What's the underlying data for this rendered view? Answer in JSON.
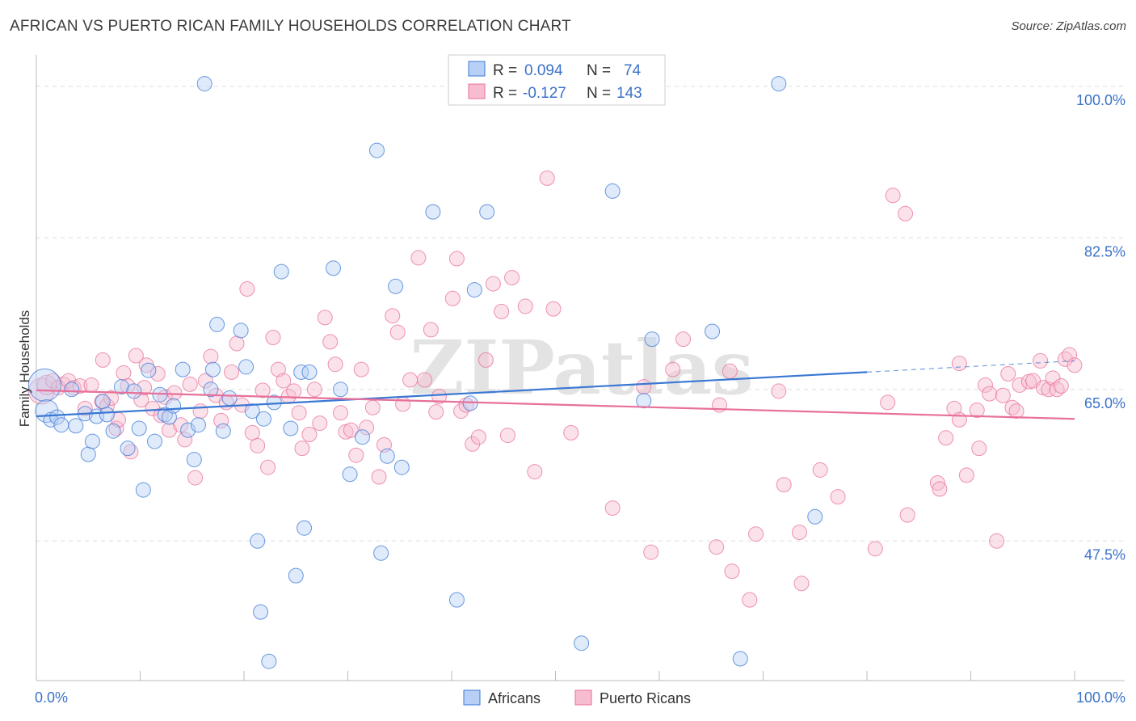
{
  "title": "AFRICAN VS PUERTO RICAN FAMILY HOUSEHOLDS CORRELATION CHART",
  "source": "Source: ZipAtlas.com",
  "watermark": "ZIPatlas",
  "colors": {
    "blue": "#3a78d4",
    "blue_fill": "#b8d0f5",
    "pink": "#e8709a",
    "pink_fill": "#f7bcd0",
    "axis_label": "#3b72c8",
    "grid": "#dddddd"
  },
  "legend_box": {
    "rows": [
      {
        "series": "Africans",
        "r_label": "R =",
        "r_value": "0.094",
        "n_label": "N =",
        "n_value": "74"
      },
      {
        "series": "Puerto Ricans",
        "r_label": "R =",
        "r_value": "-0.127",
        "n_label": "N =",
        "n_value": "143"
      }
    ]
  },
  "chart_data": {
    "type": "scatter",
    "title": "AFRICAN VS PUERTO RICAN FAMILY HOUSEHOLDS CORRELATION CHART",
    "xlabel": "",
    "ylabel": "Family Households",
    "xlim": [
      0,
      100
    ],
    "ylim": [
      32.5,
      102.5
    ],
    "x_tick_labels": [
      {
        "value": 0,
        "label": "0.0%"
      },
      {
        "value": 100,
        "label": "100.0%"
      }
    ],
    "y_tick_labels": [
      {
        "value": 47.5,
        "label": "47.5%"
      },
      {
        "value": 65.0,
        "label": "65.0%"
      },
      {
        "value": 82.5,
        "label": "82.5%"
      },
      {
        "value": 100.0,
        "label": "100.0%"
      }
    ],
    "legend": [
      "Africans",
      "Puerto Ricans"
    ],
    "series": [
      {
        "name": "Africans",
        "trend": {
          "x": [
            0,
            80
          ],
          "y": [
            61.9,
            67.0
          ],
          "dashed_extension_x": [
            80,
            100
          ],
          "dashed_extension_y": [
            67.0,
            68.3
          ]
        },
        "points": [
          [
            0.8,
            65.5,
            20
          ],
          [
            1.0,
            62.5,
            14
          ],
          [
            1.4,
            61.5,
            9
          ],
          [
            2.0,
            61.8,
            9
          ],
          [
            2.4,
            60.9,
            9
          ],
          [
            3.4,
            65.0,
            9
          ],
          [
            3.8,
            60.8,
            9
          ],
          [
            4.7,
            62.2,
            9
          ],
          [
            5.0,
            57.5,
            9
          ],
          [
            5.4,
            59.0,
            9
          ],
          [
            5.8,
            61.9,
            9
          ],
          [
            6.4,
            63.6,
            9
          ],
          [
            6.8,
            62.1,
            9
          ],
          [
            7.4,
            60.2,
            9
          ],
          [
            8.2,
            65.3,
            9
          ],
          [
            8.8,
            58.2,
            9
          ],
          [
            9.4,
            64.8,
            9
          ],
          [
            9.9,
            60.5,
            9
          ],
          [
            10.3,
            53.4,
            9
          ],
          [
            10.8,
            67.2,
            9
          ],
          [
            11.4,
            59.0,
            9
          ],
          [
            11.9,
            64.4,
            9
          ],
          [
            12.4,
            62.1,
            9
          ],
          [
            12.8,
            61.8,
            9
          ],
          [
            13.2,
            63.1,
            9
          ],
          [
            14.1,
            67.3,
            9
          ],
          [
            14.6,
            60.3,
            9
          ],
          [
            15.2,
            56.9,
            9
          ],
          [
            15.6,
            60.9,
            9
          ],
          [
            16.2,
            100.3,
            9
          ],
          [
            16.8,
            65.0,
            9
          ],
          [
            17.0,
            67.3,
            9
          ],
          [
            17.4,
            72.5,
            9
          ],
          [
            18.0,
            60.2,
            9
          ],
          [
            18.6,
            64.0,
            9
          ],
          [
            19.7,
            71.8,
            9
          ],
          [
            20.2,
            67.6,
            9
          ],
          [
            20.8,
            62.5,
            9
          ],
          [
            21.3,
            47.5,
            9
          ],
          [
            21.6,
            39.3,
            9
          ],
          [
            21.9,
            61.6,
            9
          ],
          [
            22.4,
            33.6,
            9
          ],
          [
            22.9,
            63.5,
            9
          ],
          [
            23.6,
            78.6,
            9
          ],
          [
            24.5,
            60.5,
            9
          ],
          [
            25.0,
            43.5,
            9
          ],
          [
            25.5,
            67.0,
            9
          ],
          [
            25.8,
            49.0,
            9
          ],
          [
            26.3,
            67.0,
            9
          ],
          [
            28.6,
            79.0,
            9
          ],
          [
            29.3,
            65.0,
            9
          ],
          [
            30.2,
            55.2,
            9
          ],
          [
            31.4,
            59.5,
            9
          ],
          [
            32.8,
            92.6,
            9
          ],
          [
            33.2,
            46.1,
            9
          ],
          [
            33.8,
            57.3,
            9
          ],
          [
            34.6,
            76.9,
            9
          ],
          [
            35.2,
            56.0,
            9
          ],
          [
            38.2,
            85.5,
            9
          ],
          [
            40.5,
            40.7,
            9
          ],
          [
            41.8,
            63.4,
            9
          ],
          [
            42.2,
            76.5,
            9
          ],
          [
            43.4,
            85.5,
            9
          ],
          [
            52.5,
            35.7,
            9
          ],
          [
            55.5,
            87.9,
            9
          ],
          [
            58.5,
            63.7,
            9
          ],
          [
            59.3,
            70.8,
            9
          ],
          [
            65.1,
            71.7,
            9
          ],
          [
            67.8,
            33.9,
            9
          ],
          [
            71.5,
            100.3,
            9
          ],
          [
            75.0,
            50.3,
            9
          ]
        ]
      },
      {
        "name": "Puerto Ricans",
        "trend": {
          "x": [
            0,
            100
          ],
          "y": [
            64.9,
            61.6
          ]
        },
        "points": [
          [
            0.5,
            64.8,
            16
          ],
          [
            1.0,
            65.5,
            12
          ],
          [
            1.6,
            66.0,
            9
          ],
          [
            2.1,
            65.2,
            9
          ],
          [
            2.6,
            65.6,
            9
          ],
          [
            3.1,
            66.0,
            9
          ],
          [
            3.6,
            65.2,
            9
          ],
          [
            4.2,
            65.4,
            9
          ],
          [
            4.7,
            62.8,
            9
          ],
          [
            5.3,
            65.5,
            9
          ],
          [
            6.3,
            63.6,
            9
          ],
          [
            6.4,
            68.4,
            9
          ],
          [
            6.8,
            63.1,
            9
          ],
          [
            7.2,
            64.0,
            9
          ],
          [
            7.7,
            60.5,
            9
          ],
          [
            7.9,
            61.5,
            9
          ],
          [
            8.4,
            66.9,
            9
          ],
          [
            8.8,
            65.4,
            9
          ],
          [
            9.1,
            57.8,
            9
          ],
          [
            9.6,
            68.9,
            9
          ],
          [
            10.1,
            63.8,
            9
          ],
          [
            10.4,
            65.2,
            9
          ],
          [
            10.6,
            67.8,
            9
          ],
          [
            11.2,
            62.8,
            9
          ],
          [
            11.7,
            66.8,
            9
          ],
          [
            12.0,
            62.0,
            9
          ],
          [
            12.4,
            64.1,
            9
          ],
          [
            12.8,
            60.3,
            9
          ],
          [
            13.3,
            64.6,
            9
          ],
          [
            13.9,
            60.9,
            9
          ],
          [
            14.3,
            59.2,
            9
          ],
          [
            14.8,
            65.6,
            9
          ],
          [
            15.3,
            54.8,
            9
          ],
          [
            15.8,
            62.5,
            9
          ],
          [
            16.3,
            66.0,
            9
          ],
          [
            16.8,
            68.8,
            9
          ],
          [
            17.3,
            64.3,
            9
          ],
          [
            17.8,
            61.4,
            9
          ],
          [
            18.3,
            63.5,
            9
          ],
          [
            18.8,
            67.0,
            9
          ],
          [
            19.3,
            70.3,
            9
          ],
          [
            19.8,
            63.2,
            9
          ],
          [
            20.3,
            76.6,
            9
          ],
          [
            20.8,
            60.0,
            9
          ],
          [
            21.3,
            58.5,
            9
          ],
          [
            21.8,
            64.9,
            9
          ],
          [
            22.3,
            56.0,
            9
          ],
          [
            22.8,
            71.0,
            9
          ],
          [
            23.3,
            67.3,
            9
          ],
          [
            23.8,
            66.0,
            9
          ],
          [
            24.3,
            64.2,
            9
          ],
          [
            24.8,
            64.8,
            9
          ],
          [
            25.3,
            62.3,
            9
          ],
          [
            25.6,
            58.2,
            9
          ],
          [
            26.3,
            59.8,
            9
          ],
          [
            26.8,
            65.0,
            9
          ],
          [
            27.3,
            61.1,
            9
          ],
          [
            27.8,
            73.3,
            9
          ],
          [
            28.3,
            70.5,
            9
          ],
          [
            28.8,
            67.9,
            9
          ],
          [
            29.3,
            62.3,
            9
          ],
          [
            29.8,
            60.1,
            9
          ],
          [
            30.3,
            60.3,
            9
          ],
          [
            30.8,
            57.4,
            9
          ],
          [
            31.3,
            67.3,
            9
          ],
          [
            31.8,
            60.6,
            9
          ],
          [
            32.4,
            62.9,
            9
          ],
          [
            33.0,
            54.9,
            9
          ],
          [
            33.5,
            58.6,
            9
          ],
          [
            34.3,
            73.5,
            9
          ],
          [
            34.8,
            71.6,
            9
          ],
          [
            35.3,
            63.3,
            9
          ],
          [
            36.0,
            66.1,
            9
          ],
          [
            36.8,
            80.2,
            9
          ],
          [
            37.4,
            66.1,
            9
          ],
          [
            38.0,
            71.9,
            9
          ],
          [
            38.5,
            62.4,
            9
          ],
          [
            38.8,
            64.2,
            9
          ],
          [
            40.1,
            75.5,
            9
          ],
          [
            40.5,
            80.1,
            9
          ],
          [
            40.9,
            62.5,
            9
          ],
          [
            41.4,
            63.2,
            9
          ],
          [
            42.0,
            58.7,
            9
          ],
          [
            42.6,
            59.5,
            9
          ],
          [
            43.3,
            68.4,
            9
          ],
          [
            44.0,
            77.2,
            9
          ],
          [
            44.8,
            74.0,
            9
          ],
          [
            45.4,
            59.7,
            9
          ],
          [
            45.8,
            77.9,
            9
          ],
          [
            47.1,
            74.6,
            9
          ],
          [
            48.0,
            55.5,
            9
          ],
          [
            49.2,
            89.4,
            9
          ],
          [
            49.8,
            74.3,
            9
          ],
          [
            51.5,
            60.0,
            9
          ],
          [
            55.5,
            51.3,
            9
          ],
          [
            58.5,
            65.3,
            9
          ],
          [
            59.2,
            46.2,
            9
          ],
          [
            61.3,
            67.3,
            9
          ],
          [
            62.3,
            70.8,
            9
          ],
          [
            65.5,
            46.8,
            9
          ],
          [
            65.8,
            63.2,
            9
          ],
          [
            66.8,
            67.1,
            9
          ],
          [
            67.0,
            44.0,
            9
          ],
          [
            68.7,
            40.7,
            9
          ],
          [
            69.3,
            48.3,
            9
          ],
          [
            71.5,
            64.8,
            9
          ],
          [
            72.0,
            54.0,
            9
          ],
          [
            73.5,
            48.5,
            9
          ],
          [
            73.7,
            42.6,
            9
          ],
          [
            75.5,
            55.7,
            9
          ],
          [
            77.2,
            52.6,
            9
          ],
          [
            80.8,
            46.6,
            9
          ],
          [
            82.0,
            63.5,
            9
          ],
          [
            82.5,
            87.4,
            9
          ],
          [
            83.7,
            85.3,
            9
          ],
          [
            83.9,
            50.5,
            9
          ],
          [
            86.8,
            54.2,
            9
          ],
          [
            87.0,
            53.5,
            9
          ],
          [
            87.6,
            59.4,
            9
          ],
          [
            88.4,
            62.8,
            9
          ],
          [
            88.9,
            61.5,
            9
          ],
          [
            88.9,
            68.0,
            9
          ],
          [
            89.6,
            55.1,
            9
          ],
          [
            90.6,
            62.6,
            9
          ],
          [
            90.8,
            58.2,
            9
          ],
          [
            91.4,
            65.5,
            9
          ],
          [
            91.8,
            64.5,
            9
          ],
          [
            92.5,
            47.5,
            9
          ],
          [
            93.1,
            64.3,
            9
          ],
          [
            93.6,
            66.8,
            9
          ],
          [
            94.0,
            62.9,
            9
          ],
          [
            94.4,
            62.5,
            9
          ],
          [
            94.7,
            65.5,
            9
          ],
          [
            95.6,
            65.9,
            9
          ],
          [
            96.0,
            66.0,
            9
          ],
          [
            96.7,
            68.3,
            9
          ],
          [
            97.0,
            65.2,
            9
          ],
          [
            97.5,
            65.0,
            9
          ],
          [
            97.9,
            66.3,
            9
          ],
          [
            98.3,
            65.0,
            9
          ],
          [
            98.7,
            65.4,
            9
          ],
          [
            99.1,
            68.5,
            9
          ],
          [
            99.5,
            69.0,
            9
          ],
          [
            100.0,
            67.8,
            9
          ]
        ]
      }
    ]
  }
}
